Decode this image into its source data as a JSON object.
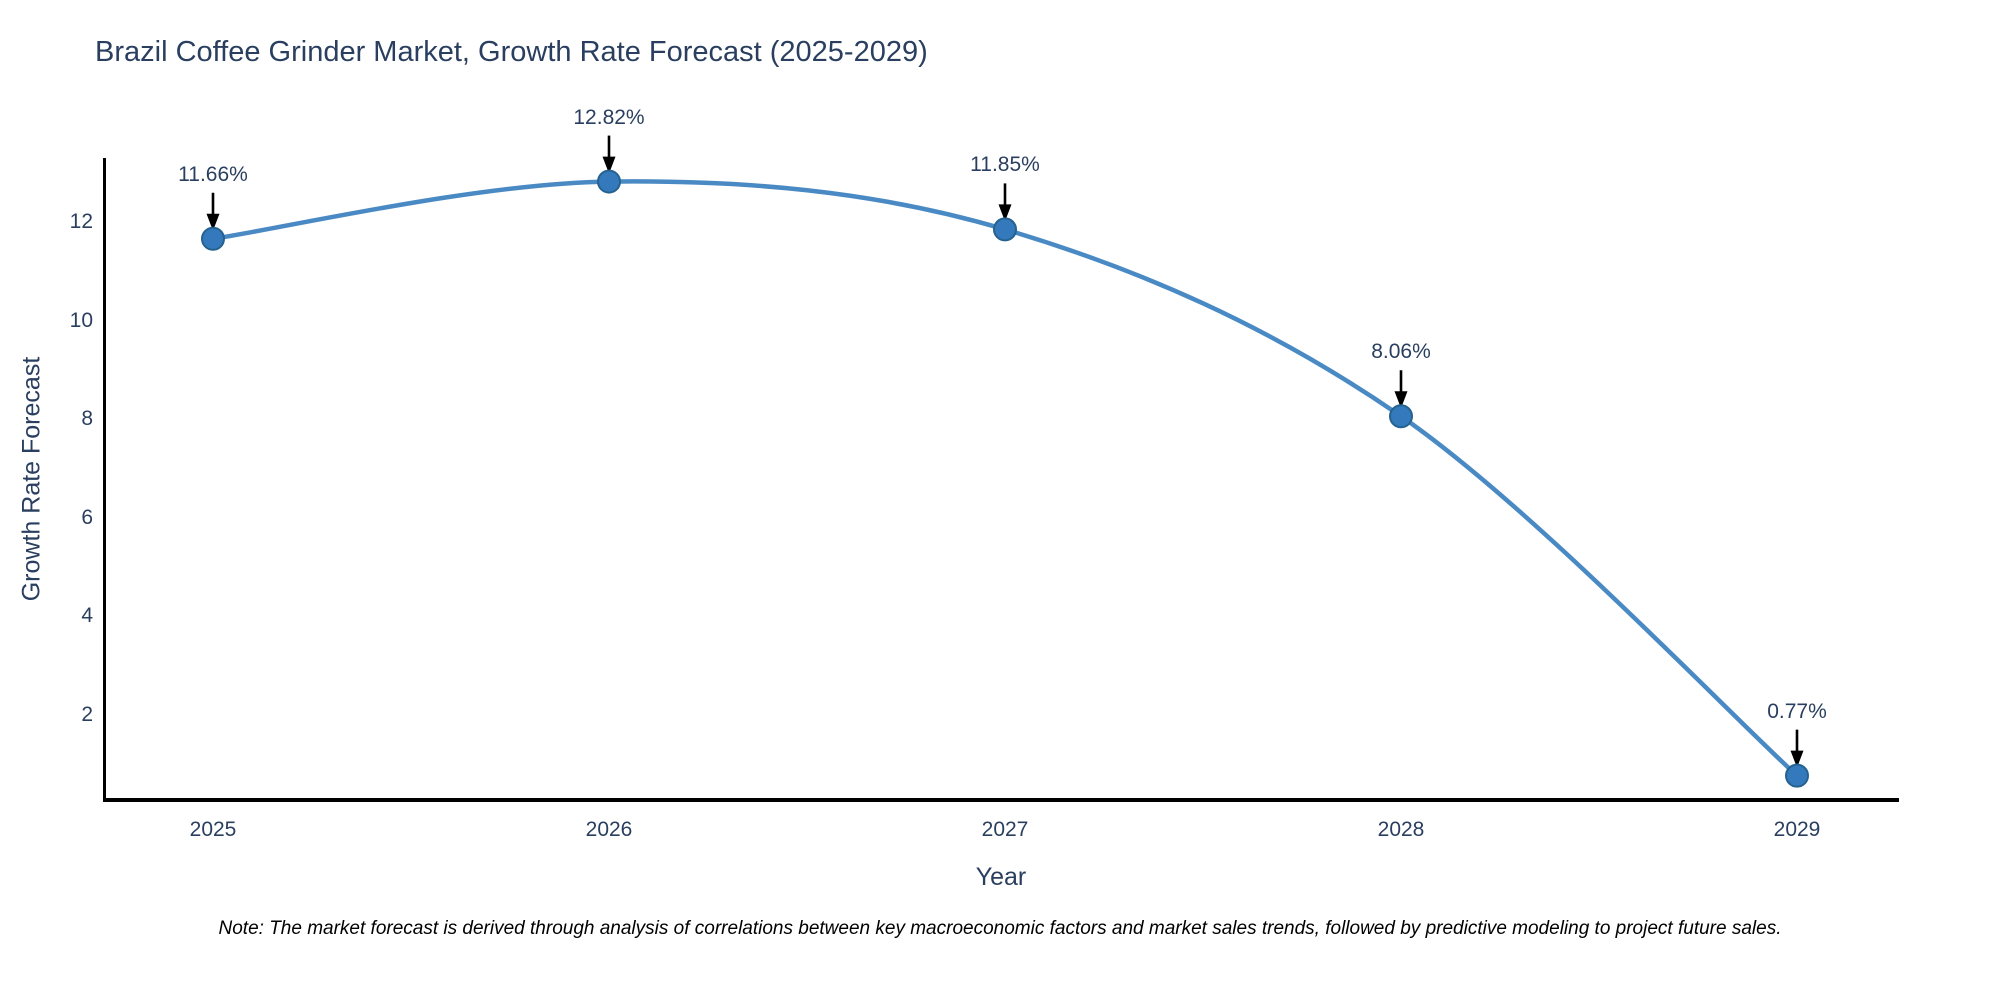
{
  "title": "Brazil Coffee Grinder Market, Growth Rate Forecast (2025-2029)",
  "note": "Note: The market forecast is derived through analysis of correlations between key macroeconomic factors and market sales trends, followed by predictive modeling to project future sales.",
  "colors": {
    "line": "#4a8ac4",
    "marker_fill": "#3579bd",
    "marker_edge": "#25628f",
    "text": "#2a3f5f",
    "axis_line": "#000000",
    "arrow": "#000000",
    "note_text": "#000000",
    "background": "#ffffff"
  },
  "chart_data": {
    "type": "line",
    "title": "Brazil Coffee Grinder Market, Growth Rate Forecast (2025-2029)",
    "xlabel": "Year",
    "ylabel": "Growth Rate Forecast",
    "x": [
      2025,
      2026,
      2027,
      2028,
      2029
    ],
    "values": [
      11.66,
      12.82,
      11.85,
      8.06,
      0.77
    ],
    "point_labels": [
      "11.66%",
      "12.82%",
      "11.85%",
      "8.06%",
      "0.77%"
    ],
    "xtick_labels": [
      "2025",
      "2026",
      "2027",
      "2028",
      "2029"
    ],
    "ytick_values": [
      2,
      4,
      6,
      8,
      10,
      12
    ],
    "xlim": [
      2024.73,
      2029.25
    ],
    "ylim": [
      0.27,
      13.3
    ],
    "grid": false,
    "legend": "none",
    "line_shape": "spline",
    "marker": "circle",
    "annotations_have_arrows": true
  }
}
